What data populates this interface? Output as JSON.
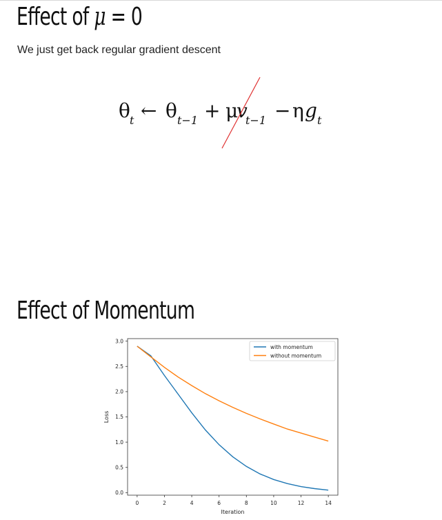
{
  "section1": {
    "heading_prefix": "Effect of ",
    "heading_symbol": "μ",
    "heading_suffix": " = 0",
    "body": "We just get back regular gradient descent",
    "equation": {
      "theta": "θ",
      "sub_t": "t",
      "arrow": "←",
      "sub_t1": "t−1",
      "plus": "+",
      "mu": "μ",
      "v": "v",
      "minus": "−",
      "eta": "η",
      "g": "g",
      "strike_color": "#e03030"
    }
  },
  "section2": {
    "heading": "Effect of Momentum"
  },
  "chart_data": {
    "type": "line",
    "x": [
      0,
      1,
      2,
      3,
      4,
      5,
      6,
      7,
      8,
      9,
      10,
      11,
      12,
      13,
      14
    ],
    "xlabel": "Iteration",
    "ylabel": "Loss",
    "xlim": [
      -0.7,
      14.7
    ],
    "ylim": [
      -0.05,
      3.05
    ],
    "xticks": [
      0,
      2,
      4,
      6,
      8,
      10,
      12,
      14
    ],
    "yticks": [
      0.0,
      0.5,
      1.0,
      1.5,
      2.0,
      2.5,
      3.0
    ],
    "grid": false,
    "legend": "top-right",
    "series": [
      {
        "name": "with momentum",
        "color": "#1f77b4",
        "values": [
          2.9,
          2.71,
          2.32,
          1.95,
          1.58,
          1.24,
          0.95,
          0.71,
          0.52,
          0.37,
          0.26,
          0.18,
          0.12,
          0.08,
          0.05
        ]
      },
      {
        "name": "without momentum",
        "color": "#ff7f0e",
        "values": [
          2.9,
          2.69,
          2.48,
          2.29,
          2.12,
          1.96,
          1.82,
          1.69,
          1.57,
          1.46,
          1.36,
          1.26,
          1.18,
          1.1,
          1.02
        ]
      }
    ]
  }
}
